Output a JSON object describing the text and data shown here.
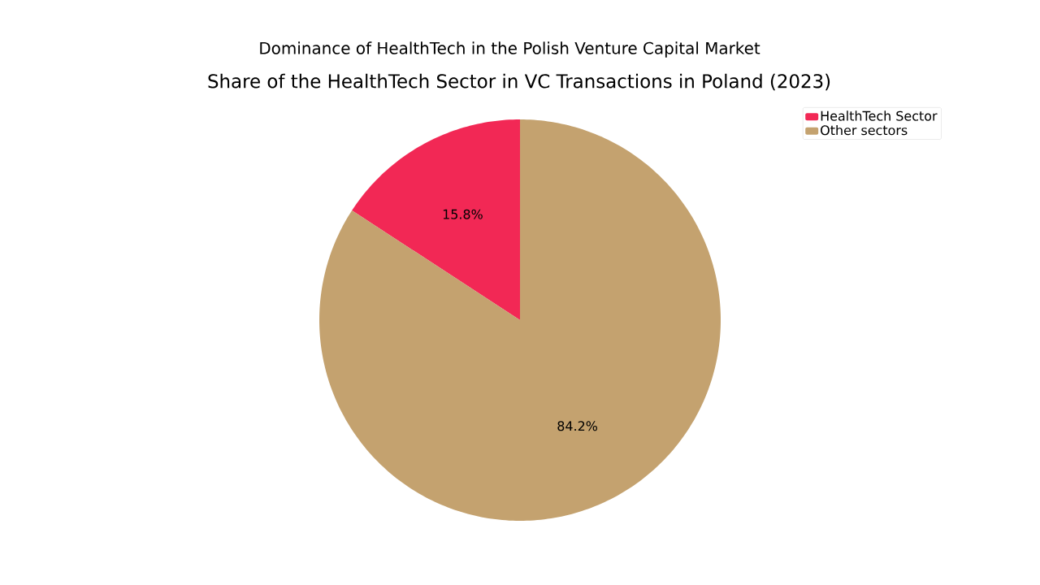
{
  "chart_data": {
    "type": "pie",
    "title": "Dominance of HealthTech in the Polish Venture Capital Market",
    "subtitle": "Share of the HealthTech Sector in VC Transactions in Poland (2023)",
    "categories": [
      "HealthTech Sector",
      "Other sectors"
    ],
    "values": [
      15.8,
      84.2
    ],
    "colors": [
      "#f22855",
      "#c4a26f"
    ],
    "value_labels": [
      "15.8%",
      "84.2%"
    ],
    "legend": "top right"
  }
}
